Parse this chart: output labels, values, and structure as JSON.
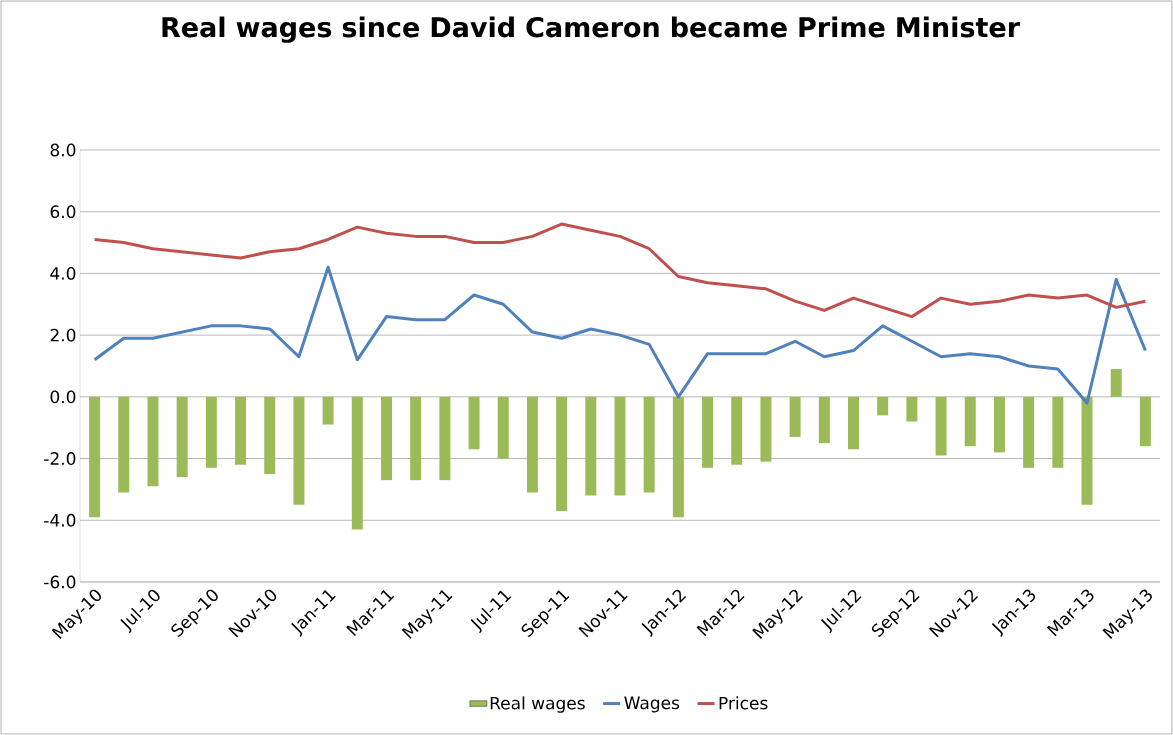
{
  "chart_data": {
    "type": "line",
    "title": "Real wages since David Cameron became Prime Minister",
    "categories": [
      "May-10",
      null,
      "Jul-10",
      null,
      "Sep-10",
      null,
      "Nov-10",
      null,
      "Jan-11",
      null,
      "Mar-11",
      null,
      "May-11",
      null,
      "Jul-11",
      null,
      "Sep-11",
      null,
      "Nov-11",
      null,
      "Jan-12",
      null,
      "Mar-12",
      null,
      "May-12",
      null,
      "Jul-12",
      null,
      "Sep-12",
      null,
      "Nov-12",
      null,
      "Jan-13",
      null,
      "Mar-13",
      null,
      "May-13"
    ],
    "series": [
      {
        "name": "Real wages",
        "type": "bar",
        "color": "#9bbb59",
        "values": [
          -3.9,
          -3.1,
          -2.9,
          -2.6,
          -2.3,
          -2.2,
          -2.5,
          -3.5,
          -0.9,
          -4.3,
          -2.7,
          -2.7,
          -2.7,
          -1.7,
          -2.0,
          -3.1,
          -3.7,
          -3.2,
          -3.2,
          -3.1,
          -3.9,
          -2.3,
          -2.2,
          -2.1,
          -1.3,
          -1.5,
          -1.7,
          -0.6,
          -0.8,
          -1.9,
          -1.6,
          -1.8,
          -2.3,
          -2.3,
          -3.5,
          0.9,
          -1.6
        ]
      },
      {
        "name": "Wages",
        "color": "#4f81bd",
        "values": [
          1.2,
          1.9,
          1.9,
          2.1,
          2.3,
          2.3,
          2.2,
          1.3,
          4.2,
          1.2,
          2.6,
          2.5,
          2.5,
          3.3,
          3.0,
          2.1,
          1.9,
          2.2,
          2.0,
          1.7,
          0.0,
          1.4,
          1.4,
          1.4,
          1.8,
          1.3,
          1.5,
          2.3,
          1.8,
          1.3,
          1.4,
          1.3,
          1.0,
          0.9,
          -0.2,
          3.8,
          1.5
        ]
      },
      {
        "name": "Prices",
        "color": "#c0504d",
        "values": [
          5.1,
          5.0,
          4.8,
          4.7,
          4.6,
          4.5,
          4.7,
          4.8,
          5.1,
          5.5,
          5.3,
          5.2,
          5.2,
          5.0,
          5.0,
          5.2,
          5.6,
          5.4,
          5.2,
          4.8,
          3.9,
          3.7,
          3.6,
          3.5,
          3.1,
          2.8,
          3.2,
          2.9,
          2.6,
          3.2,
          3.0,
          3.1,
          3.3,
          3.2,
          3.3,
          2.9,
          3.1
        ]
      }
    ],
    "ylim": [
      -6,
      8
    ],
    "yticks": [
      {
        "value": -6,
        "label": "-6.0"
      },
      {
        "value": -4,
        "label": "-4.0"
      },
      {
        "value": -2,
        "label": "-2.0"
      },
      {
        "value": 0,
        "label": "0.0"
      },
      {
        "value": 2,
        "label": "2.0"
      },
      {
        "value": 4,
        "label": "4.0"
      },
      {
        "value": 6,
        "label": "6.0"
      },
      {
        "value": 8,
        "label": "8.0"
      }
    ],
    "grid": "y",
    "legend": "bottom",
    "marker": "none",
    "line_style": "solid"
  }
}
